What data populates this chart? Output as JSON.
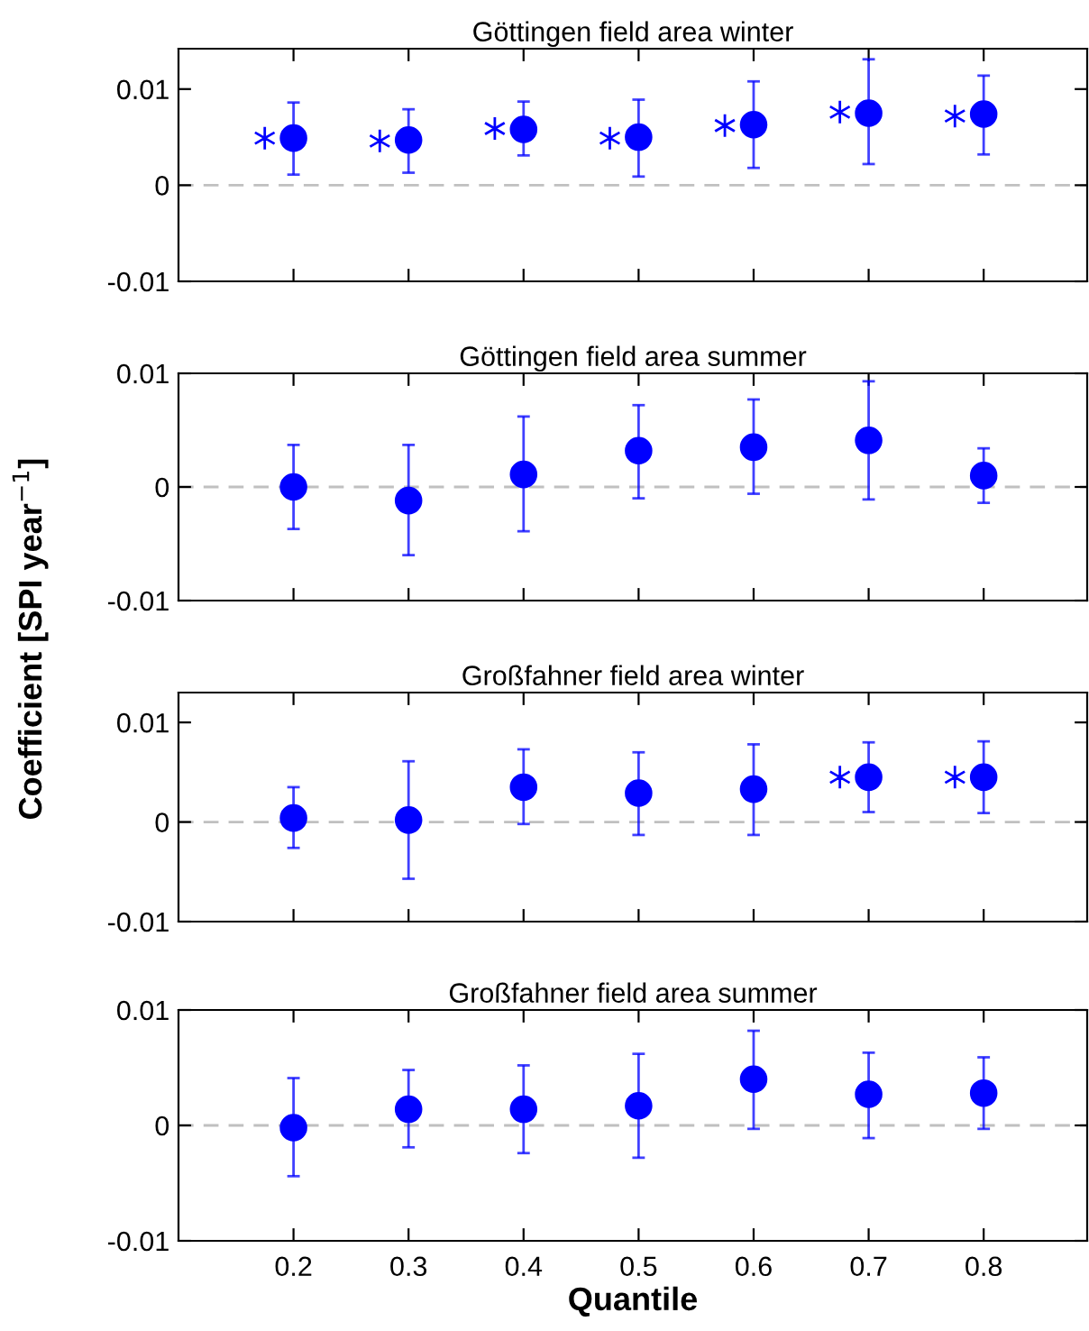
{
  "chart_data": [
    {
      "type": "scatter",
      "title": "Göttingen field area winter",
      "ylabel": "Coefficient [SPI year$^{−1}$]",
      "xlim": [
        0.1,
        0.89
      ],
      "ylim": [
        -0.01,
        0.0142
      ],
      "xticks": [
        0.2,
        0.3,
        0.4,
        0.5,
        0.6,
        0.7,
        0.8
      ],
      "yticks": [
        -0.01,
        0,
        0.01
      ],
      "tick_labels": "y",
      "grid": false,
      "legend": false,
      "ref_lines": [
        {
          "axis": "y",
          "value": 0,
          "color": "#c0c0c0",
          "line_style": "dashed"
        }
      ],
      "series": [
        {
          "color": "#0000ff",
          "marker": "circle",
          "x": [
            0.2,
            0.3,
            0.4,
            0.5,
            0.6,
            0.7,
            0.8
          ],
          "values": [
            0.0049,
            0.0047,
            0.0058,
            0.005,
            0.0063,
            0.0075,
            0.0074
          ],
          "errors": [
            [
              0.0011,
              0.0086
            ],
            [
              0.0013,
              0.0079
            ],
            [
              0.0031,
              0.0087
            ],
            [
              0.0009,
              0.0089
            ],
            [
              0.0018,
              0.0108
            ],
            [
              0.0022,
              0.0131
            ],
            [
              0.0032,
              0.0114
            ]
          ]
        },
        {
          "color": "#0000ff",
          "marker": "cross",
          "x": [
            0.175,
            0.275,
            0.375,
            0.475,
            0.575,
            0.675,
            0.775
          ],
          "values": [
            0.0049,
            0.0046,
            0.0059,
            0.0049,
            0.0062,
            0.0076,
            0.0072
          ]
        }
      ]
    },
    {
      "type": "scatter",
      "title": "Göttingen field area summer",
      "xlim": [
        0.1,
        0.89
      ],
      "ylim": [
        -0.01,
        0.01
      ],
      "xticks": [
        0.2,
        0.3,
        0.4,
        0.5,
        0.6,
        0.7,
        0.8
      ],
      "yticks": [
        -0.01,
        0,
        0.01
      ],
      "tick_labels": "y",
      "grid": false,
      "legend": false,
      "ref_lines": [
        {
          "axis": "y",
          "value": 0,
          "color": "#c0c0c0",
          "line_style": "dashed"
        }
      ],
      "series": [
        {
          "color": "#0000ff",
          "marker": "circle",
          "x": [
            0.2,
            0.3,
            0.4,
            0.5,
            0.6,
            0.7,
            0.8
          ],
          "values": [
            0.0,
            -0.0012,
            0.0011,
            0.0032,
            0.0035,
            0.0041,
            0.001
          ],
          "errors": [
            [
              -0.0037,
              0.0037
            ],
            [
              -0.006,
              0.0037
            ],
            [
              -0.0039,
              0.0062
            ],
            [
              -0.001,
              0.0072
            ],
            [
              -0.0006,
              0.0077
            ],
            [
              -0.0011,
              0.0093
            ],
            [
              -0.0014,
              0.0034
            ]
          ]
        }
      ]
    },
    {
      "type": "scatter",
      "title": "Großfahner field area winter",
      "xlim": [
        0.1,
        0.89
      ],
      "ylim": [
        -0.01,
        0.013
      ],
      "xticks": [
        0.2,
        0.3,
        0.4,
        0.5,
        0.6,
        0.7,
        0.8
      ],
      "yticks": [
        -0.01,
        0,
        0.01
      ],
      "tick_labels": "y",
      "grid": false,
      "legend": false,
      "ref_lines": [
        {
          "axis": "y",
          "value": 0,
          "color": "#c0c0c0",
          "line_style": "dashed"
        }
      ],
      "series": [
        {
          "color": "#0000ff",
          "marker": "circle",
          "x": [
            0.2,
            0.3,
            0.4,
            0.5,
            0.6,
            0.7,
            0.8
          ],
          "values": [
            0.0004,
            0.0002,
            0.0035,
            0.0029,
            0.0033,
            0.0045,
            0.0045
          ],
          "errors": [
            [
              -0.0026,
              0.0035
            ],
            [
              -0.0057,
              0.0061
            ],
            [
              -0.0002,
              0.0073
            ],
            [
              -0.0013,
              0.007
            ],
            [
              -0.0013,
              0.0078
            ],
            [
              0.001,
              0.008
            ],
            [
              0.0009,
              0.0081
            ]
          ]
        },
        {
          "color": "#0000ff",
          "marker": "cross",
          "x": [
            0.675,
            0.775
          ],
          "values": [
            0.0045,
            0.0045
          ]
        }
      ]
    },
    {
      "type": "scatter",
      "title": "Großfahner field area summer",
      "xlabel": "Quantile",
      "xlim": [
        0.1,
        0.89
      ],
      "ylim": [
        -0.01,
        0.01
      ],
      "xticks": [
        0.2,
        0.3,
        0.4,
        0.5,
        0.6,
        0.7,
        0.8
      ],
      "yticks": [
        -0.01,
        0,
        0.01
      ],
      "grid": false,
      "legend": false,
      "ref_lines": [
        {
          "axis": "y",
          "value": 0,
          "color": "#c0c0c0",
          "line_style": "dashed"
        }
      ],
      "series": [
        {
          "color": "#0000ff",
          "marker": "circle",
          "x": [
            0.2,
            0.3,
            0.4,
            0.5,
            0.6,
            0.7,
            0.8
          ],
          "values": [
            -0.0002,
            0.0014,
            0.0014,
            0.0017,
            0.004,
            0.0027,
            0.0028
          ],
          "errors": [
            [
              -0.0044,
              0.0041
            ],
            [
              -0.0019,
              0.0048
            ],
            [
              -0.0024,
              0.0052
            ],
            [
              -0.0028,
              0.0062
            ],
            [
              -0.0003,
              0.0082
            ],
            [
              -0.0011,
              0.0063
            ],
            [
              -0.0003,
              0.0059
            ]
          ]
        }
      ]
    }
  ]
}
